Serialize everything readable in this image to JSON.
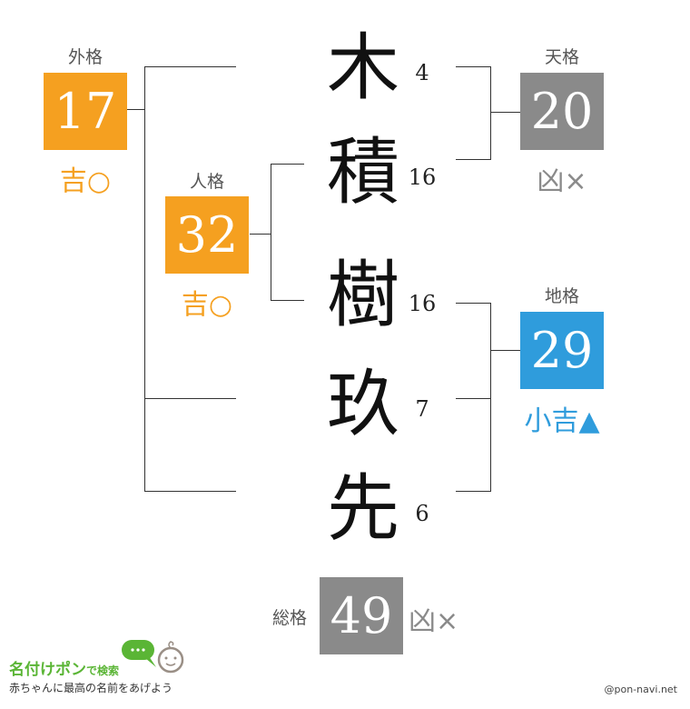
{
  "name_chars": [
    {
      "char": "木",
      "strokes": "4"
    },
    {
      "char": "積",
      "strokes": "16"
    },
    {
      "char": "樹",
      "strokes": "16"
    },
    {
      "char": "玖",
      "strokes": "7"
    },
    {
      "char": "先",
      "strokes": "6"
    }
  ],
  "gaikaku": {
    "label": "外格",
    "value": "17",
    "fortune": "吉○",
    "color": "#f5a020"
  },
  "jinkaku": {
    "label": "人格",
    "value": "32",
    "fortune": "吉○",
    "color": "#f5a020"
  },
  "tenkaku": {
    "label": "天格",
    "value": "20",
    "fortune": "凶×",
    "color": "#8a8a8a"
  },
  "chikaku": {
    "label": "地格",
    "value": "29",
    "fortune": "小吉▲",
    "color": "#2f9cdc"
  },
  "soukaku": {
    "label": "総格",
    "value": "49",
    "fortune": "凶×",
    "color": "#8a8a8a"
  },
  "footer": {
    "logo_main": "名付けポン",
    "logo_sub": "で検索",
    "tagline": "赤ちゃんに最高の名前をあげよう",
    "credit": "@pon-navi.net"
  }
}
